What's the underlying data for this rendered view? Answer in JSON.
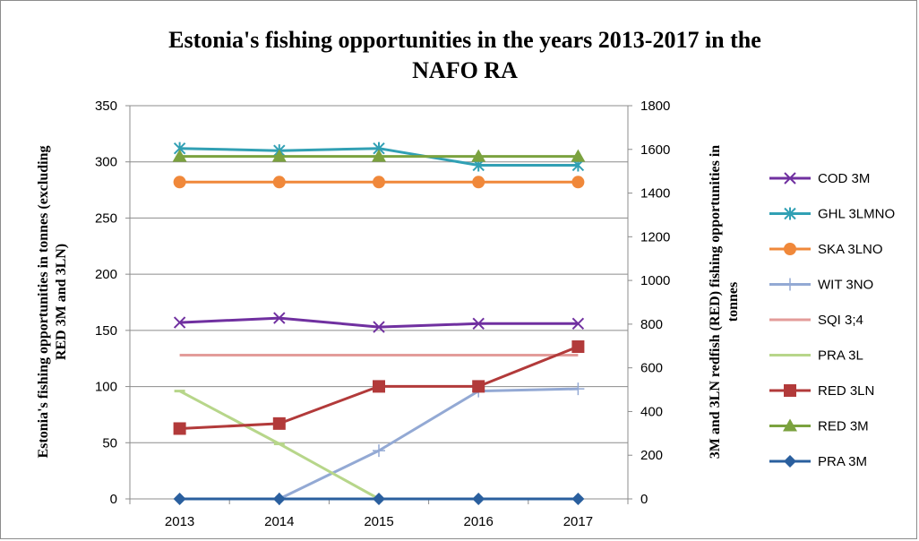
{
  "chart_data": {
    "type": "line",
    "title_lines": [
      "Estonia's  fishing opportunities  in the years 2013-2017 in the",
      "NAFO RA"
    ],
    "categories": [
      "2013",
      "2014",
      "2015",
      "2016",
      "2017"
    ],
    "y_left": {
      "label_lines": [
        "Estonia's fishing opportunities in tonnes  (excluding",
        "RED 3M and 3LN)"
      ],
      "lim": [
        0,
        350
      ],
      "ticks": [
        0,
        50,
        100,
        150,
        200,
        250,
        300,
        350
      ]
    },
    "y_right": {
      "label_lines": [
        "3M and 3LN redfish (RED) fishing opportunities in",
        "tonnes"
      ],
      "lim": [
        0,
        1800
      ],
      "ticks": [
        0,
        200,
        400,
        600,
        800,
        1000,
        1200,
        1400,
        1600,
        1800
      ]
    },
    "grid": true,
    "legend_position": "right",
    "series": [
      {
        "name": "COD 3M",
        "axis": "left",
        "color": "#7030a0",
        "marker": "x",
        "values": [
          157,
          161,
          153,
          156,
          156
        ]
      },
      {
        "name": "GHL 3LMNO",
        "axis": "left",
        "color": "#31a0b4",
        "marker": "star",
        "values": [
          312,
          310,
          312,
          297,
          297
        ]
      },
      {
        "name": "SKA 3LNO",
        "axis": "left",
        "color": "#f0883a",
        "marker": "circle",
        "values": [
          282,
          282,
          282,
          282,
          282
        ]
      },
      {
        "name": "WIT 3NO",
        "axis": "left",
        "color": "#93a9d4",
        "marker": "plus",
        "values": [
          null,
          0,
          43,
          96,
          98
        ]
      },
      {
        "name": "SQI 3;4",
        "axis": "left",
        "color": "#e39c9a",
        "marker": "none",
        "values": [
          128,
          128,
          128,
          128,
          128
        ]
      },
      {
        "name": "PRA 3L",
        "axis": "left",
        "color": "#b7d68a",
        "marker": "dash",
        "values": [
          96,
          49,
          0,
          null,
          null
        ]
      },
      {
        "name": "RED 3LN",
        "axis": "right",
        "color": "#b23a3a",
        "marker": "square",
        "values": [
          322,
          345,
          515,
          515,
          697
        ]
      },
      {
        "name": "RED 3M",
        "axis": "right",
        "color": "#7ba23f",
        "marker": "triangle",
        "values": [
          1568,
          1568,
          1568,
          1568,
          1568
        ]
      },
      {
        "name": "PRA 3M",
        "axis": "left",
        "color": "#2a5f9e",
        "marker": "diamond",
        "values": [
          0,
          0,
          0,
          0,
          0
        ]
      }
    ]
  }
}
